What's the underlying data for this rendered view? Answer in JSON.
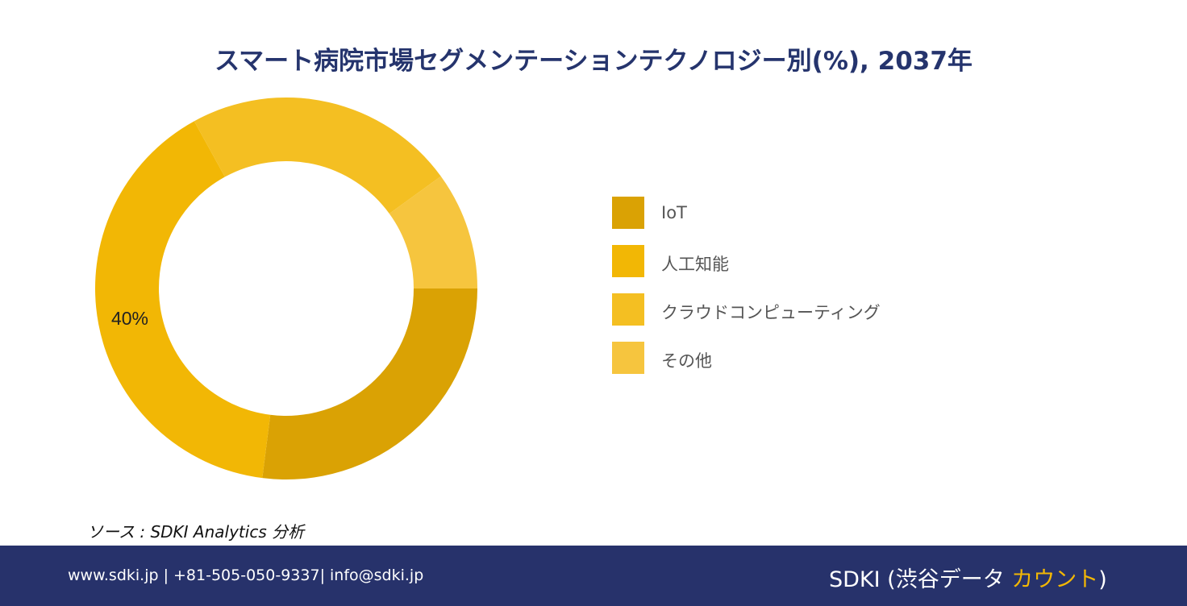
{
  "chart_data": {
    "type": "pie",
    "variant": "donut",
    "title": "スマート病院市場セグメンテーションテクノロジー別(%), 2037年",
    "categories": [
      "IoT",
      "人工知能",
      "クラウドコンピューティング",
      "その他"
    ],
    "values": [
      27,
      40,
      23,
      10
    ],
    "colors": [
      "#daa204",
      "#f2b705",
      "#f4bf22",
      "#f6c53e"
    ],
    "data_labels": [
      {
        "category": "人工知能",
        "text": "40%"
      }
    ],
    "legend_position": "right"
  },
  "source": {
    "text": "ソース : SDKI Analytics  分析"
  },
  "footer": {
    "contact": "www.sdki.jp | +81-505-050-9337| info@sdki.jp",
    "brand_main": "SDKI (渋谷データ ",
    "brand_accent": "カウント",
    "brand_close": ")"
  }
}
